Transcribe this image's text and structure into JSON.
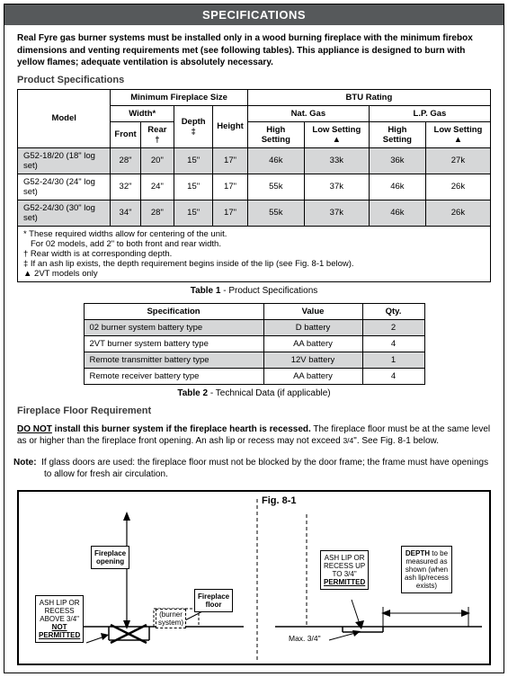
{
  "header": "SPECIFICATIONS",
  "intro": "Real Fyre gas burner systems must be installed only in a wood burning fireplace with the minimum firebox dimensions and venting requirements met (see following tables). This appliance is designed to burn with yellow flames; adequate ventilation is absolutely necessary.",
  "section_product_spec": "Product Specifications",
  "table1": {
    "head_model": "Model",
    "head_min": "Minimum Fireplace Size",
    "head_btu": "BTU Rating",
    "head_width": "Width*",
    "head_depth": "Depth ‡",
    "head_height": "Height",
    "head_nat": "Nat. Gas",
    "head_lp": "L.P. Gas",
    "head_front": "Front",
    "head_rear": "Rear †",
    "head_high": "High Setting",
    "head_low": "Low Setting ▲",
    "rows": [
      {
        "model": "G52-18/20 (18\" log set)",
        "front": "28\"",
        "rear": "20\"",
        "depth": "15\"",
        "height": "17\"",
        "nh": "46k",
        "nl": "33k",
        "lh": "36k",
        "ll": "27k",
        "alt": true
      },
      {
        "model": "G52-24/30 (24\" log set)",
        "front": "32\"",
        "rear": "24\"",
        "depth": "15\"",
        "height": "17\"",
        "nh": "55k",
        "nl": "37k",
        "lh": "46k",
        "ll": "26k",
        "alt": false
      },
      {
        "model": "G52-24/30 (30\" log set)",
        "front": "34\"",
        "rear": "28\"",
        "depth": "15\"",
        "height": "17\"",
        "nh": "55k",
        "nl": "37k",
        "lh": "46k",
        "ll": "26k",
        "alt": true
      }
    ]
  },
  "footnotes": {
    "l1": "*  These required widths allow for centering of the unit.",
    "l2": "   For 02 models, add 2\" to both front and rear width.",
    "l3": "† Rear width is at corresponding depth.",
    "l4": "‡ If an ash lip exists, the depth requirement begins inside of the lip (see Fig. 8-1 below).",
    "l5": "▲ 2VT models only"
  },
  "caption1_a": "Table 1",
  "caption1_b": " - Product Specifications",
  "table2": {
    "h1": "Specification",
    "h2": "Value",
    "h3": "Qty.",
    "rows": [
      {
        "s": "02 burner system battery type",
        "v": "D battery",
        "q": "2",
        "alt": true
      },
      {
        "s": "2VT burner system battery type",
        "v": "AA battery",
        "q": "4",
        "alt": false
      },
      {
        "s": "Remote transmitter battery type",
        "v": "12V battery",
        "q": "1",
        "alt": true
      },
      {
        "s": "Remote receiver battery type",
        "v": "AA battery",
        "q": "4",
        "alt": false
      }
    ]
  },
  "caption2_a": "Table 2",
  "caption2_b": " - Technical Data (if applicable)",
  "section_floor": "Fireplace Floor Requirement",
  "floor_text_a": "DO NOT",
  "floor_text_b": " install this burner system if the fireplace hearth is recessed.",
  "floor_text_c": " The fireplace floor must be at the same level as or higher than the fireplace front opening. An ash lip or recess may not exceed ",
  "floor_text_d": "3/4",
  "floor_text_e": "\". See Fig. 8-1 below.",
  "note_label": "Note:",
  "note_text": "If glass doors are used: the fireplace floor must not be blocked by the door frame; the frame must have openings to allow for fresh air circulation.",
  "fig": {
    "title": "Fig. 8-1",
    "label_opening_a": "Fireplace",
    "label_opening_b": "opening",
    "label_floor_a": "Fireplace",
    "label_floor_b": "floor",
    "label_burner_a": "(burner",
    "label_burner_b": "system)",
    "not_permitted_l1": "ASH LIP OR",
    "not_permitted_l2": "RECESS",
    "not_permitted_l3": "ABOVE 3/4\"",
    "not_permitted_l4": "NOT",
    "not_permitted_l5": "PERMITTED",
    "permitted_l1": "ASH LIP OR",
    "permitted_l2": "RECESS UP",
    "permitted_l3": "TO 3/4\"",
    "permitted_l4": "PERMITTED",
    "depth_l1": "DEPTH",
    "depth_l2": " to be",
    "depth_l3": "measured as",
    "depth_l4": "shown (when",
    "depth_l5": "ash lip/recess",
    "depth_l6": "exists)",
    "max": "Max. 3/4\""
  }
}
